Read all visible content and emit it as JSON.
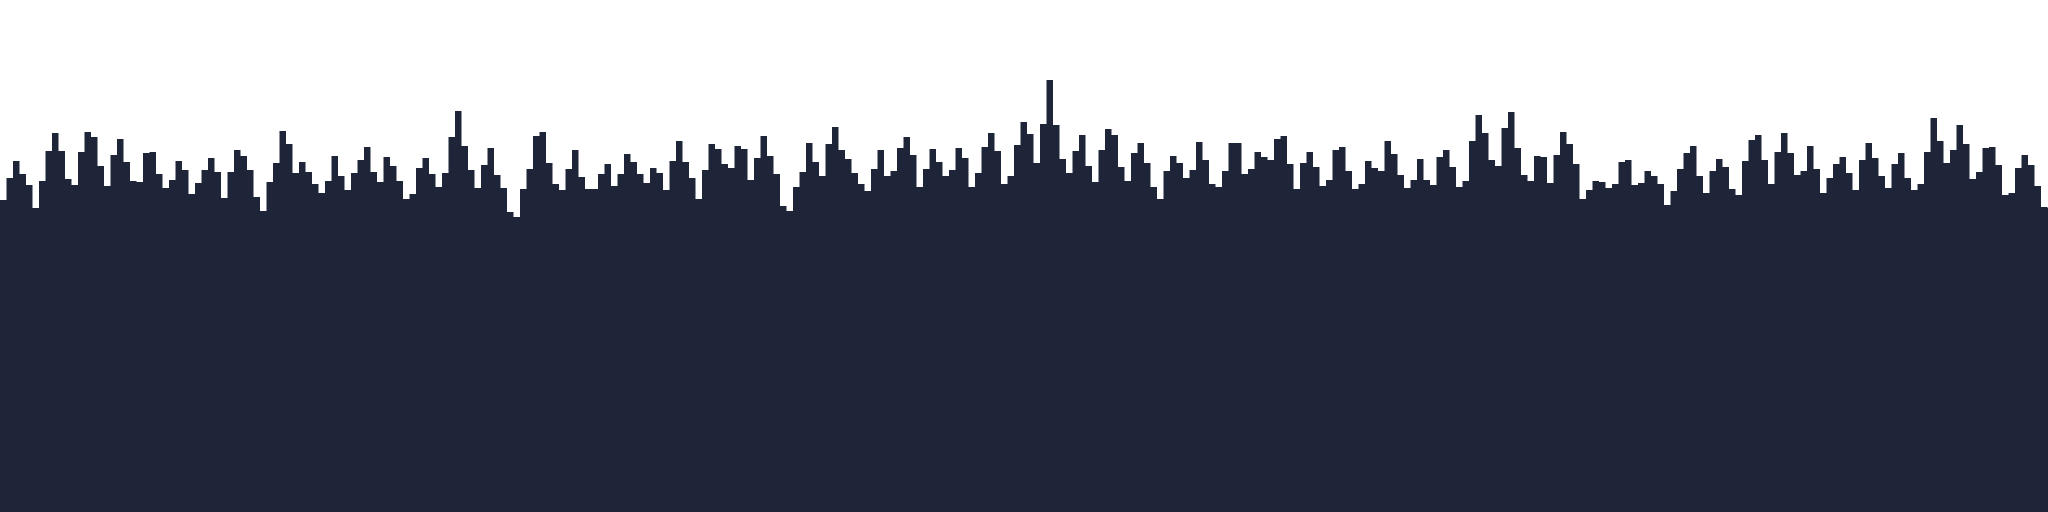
{
  "scene": {
    "background_color": "#ffffff",
    "silhouette_color": "#1e2538",
    "description_icon": "city-skyline-silhouette-icon"
  }
}
